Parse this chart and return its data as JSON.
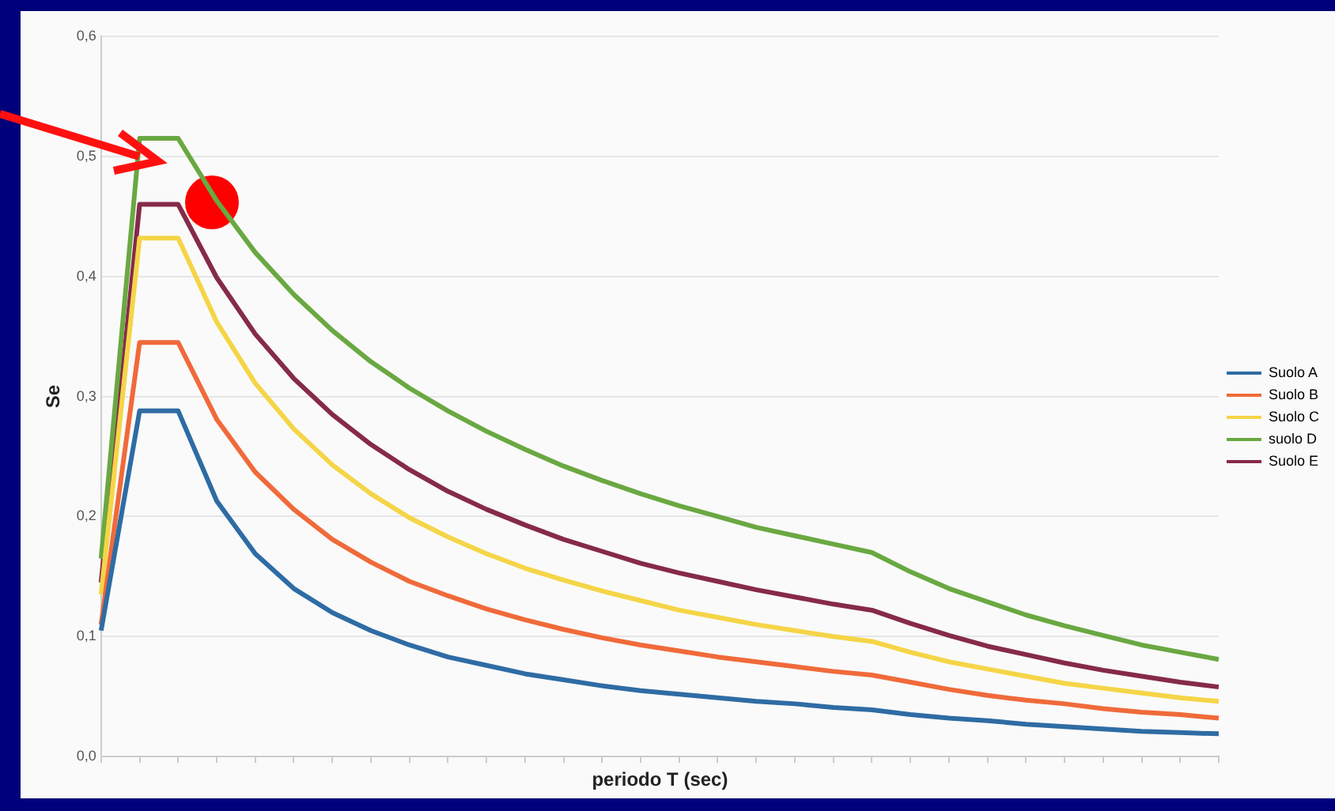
{
  "chart_data": {
    "type": "line",
    "xlabel": "periodo T (sec)",
    "ylabel": "Se",
    "categories": [
      null,
      null,
      null,
      null,
      null,
      null,
      null,
      null,
      null,
      null,
      null,
      null,
      null,
      null,
      null,
      null,
      null,
      null,
      null,
      null,
      null,
      null,
      null,
      null,
      null,
      null,
      null,
      null,
      null,
      null
    ],
    "series": [
      {
        "name": "Suolo A",
        "color": "#2e6ca4",
        "values": [
          0.105,
          0.288,
          0.288,
          0.213,
          0.169,
          0.14,
          0.12,
          0.105,
          0.093,
          0.083,
          0.076,
          0.069,
          0.064,
          0.059,
          0.055,
          0.052,
          0.049,
          0.046,
          0.044,
          0.041,
          0.039,
          0.035,
          0.032,
          0.03,
          0.027,
          0.025,
          0.023,
          0.021,
          0.02,
          0.019
        ]
      },
      {
        "name": "Suolo B",
        "color": "#f06a3a",
        "values": [
          0.11,
          0.345,
          0.345,
          0.281,
          0.237,
          0.206,
          0.181,
          0.162,
          0.146,
          0.134,
          0.123,
          0.114,
          0.106,
          0.099,
          0.093,
          0.088,
          0.083,
          0.079,
          0.075,
          0.071,
          0.068,
          0.062,
          0.056,
          0.051,
          0.047,
          0.044,
          0.04,
          0.037,
          0.035,
          0.032
        ]
      },
      {
        "name": "Suolo C",
        "color": "#f5d547",
        "values": [
          0.135,
          0.432,
          0.432,
          0.362,
          0.311,
          0.273,
          0.243,
          0.219,
          0.199,
          0.183,
          0.169,
          0.157,
          0.147,
          0.138,
          0.13,
          0.122,
          0.116,
          0.11,
          0.105,
          0.1,
          0.096,
          0.087,
          0.079,
          0.073,
          0.067,
          0.061,
          0.057,
          0.053,
          0.049,
          0.046
        ]
      },
      {
        "name": "suolo D",
        "color": "#6aa842",
        "values": [
          0.165,
          0.515,
          0.515,
          0.463,
          0.42,
          0.385,
          0.355,
          0.329,
          0.307,
          0.288,
          0.271,
          0.256,
          0.242,
          0.23,
          0.219,
          0.209,
          0.2,
          0.191,
          0.184,
          0.177,
          0.17,
          0.154,
          0.14,
          0.129,
          0.118,
          0.109,
          0.101,
          0.093,
          0.087,
          0.081
        ]
      },
      {
        "name": "Suolo E",
        "color": "#862a4a",
        "values": [
          0.145,
          0.46,
          0.46,
          0.399,
          0.352,
          0.315,
          0.285,
          0.26,
          0.239,
          0.221,
          0.206,
          0.193,
          0.181,
          0.171,
          0.161,
          0.153,
          0.146,
          0.139,
          0.133,
          0.127,
          0.122,
          0.111,
          0.101,
          0.092,
          0.085,
          0.078,
          0.072,
          0.067,
          0.062,
          0.058
        ]
      }
    ],
    "ylim": [
      0,
      0.6
    ],
    "yticks": [
      {
        "value": 0,
        "label": "0,0"
      },
      {
        "value": 0.1,
        "label": "0,1"
      },
      {
        "value": 0.2,
        "label": "0,2"
      },
      {
        "value": 0.3,
        "label": "0,3"
      },
      {
        "value": 0.4,
        "label": "0,4"
      },
      {
        "value": 0.5,
        "label": "0,5"
      },
      {
        "value": 0.6,
        "label": "0,6"
      }
    ],
    "grid": "y",
    "legend": "right",
    "tick_labels": "y",
    "marker": "none",
    "line_style": "solid"
  }
}
